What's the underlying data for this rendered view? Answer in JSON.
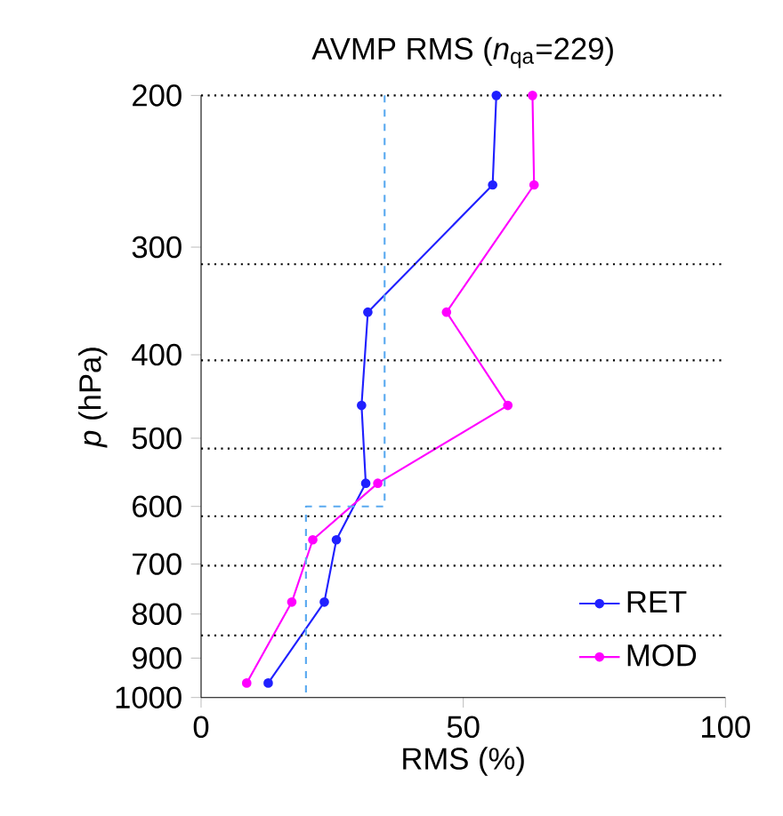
{
  "chart_data": {
    "type": "line",
    "title": "AVMP RMS (*n*$_{qa}$=229)",
    "xlabel": "RMS (%)",
    "ylabel": "*p* (hPa)",
    "xlim": [
      0,
      100
    ],
    "xticks": [
      0,
      50,
      100
    ],
    "ylim": [
      1000,
      200
    ],
    "yticks": [
      200,
      300,
      400,
      500,
      600,
      700,
      800,
      900,
      1000
    ],
    "log": "y",
    "legend": "bottom right",
    "marker": "circle",
    "series": [
      {
        "name": "RET",
        "color": "#2020ff",
        "x": [
          56.3,
          55.6,
          31.8,
          30.6,
          31.4,
          25.8,
          23.5,
          12.8
        ],
        "values": [
          200,
          254,
          357,
          458,
          564,
          656,
          775,
          962
        ]
      },
      {
        "name": "MOD",
        "color": "#ff00ff",
        "x": [
          63.2,
          63.5,
          46.8,
          58.5,
          33.7,
          21.3,
          17.3,
          8.7
        ],
        "values": [
          200,
          254,
          357,
          458,
          564,
          656,
          775,
          962
        ]
      },
      {
        "color": "#5aaaf0",
        "line_style": "dashed",
        "marker": "none",
        "x": [
          35,
          35,
          20,
          20
        ],
        "values": [
          200,
          600,
          600,
          1000
        ]
      }
    ],
    "ref_lines": [
      {
        "axis": "y",
        "value": 314,
        "color": "#000000",
        "line_style": "dotted"
      },
      {
        "axis": "y",
        "value": 406,
        "color": "#000000",
        "line_style": "dotted"
      },
      {
        "axis": "y",
        "value": 514,
        "color": "#000000",
        "line_style": "dotted"
      },
      {
        "axis": "y",
        "value": 616,
        "color": "#000000",
        "line_style": "dotted"
      },
      {
        "axis": "y",
        "value": 703,
        "color": "#000000",
        "line_style": "dotted"
      },
      {
        "axis": "y",
        "value": 847,
        "color": "#000000",
        "line_style": "dotted"
      }
    ]
  }
}
